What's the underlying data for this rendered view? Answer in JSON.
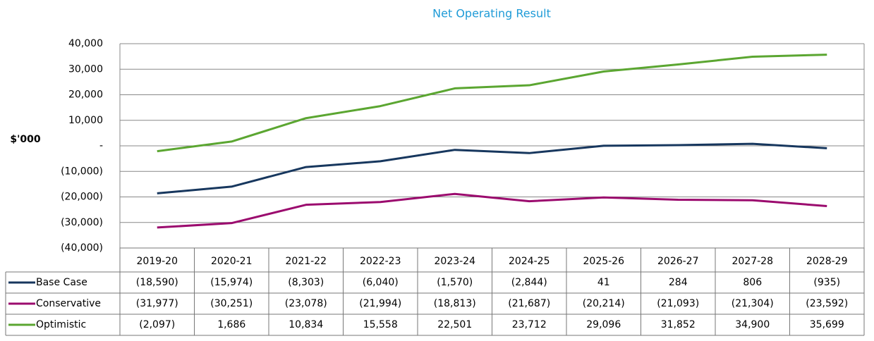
{
  "chart_data": {
    "type": "line",
    "title": "Net Operating Result",
    "y_label": "$'000",
    "categories": [
      "2019-20",
      "2020-21",
      "2021-22",
      "2022-23",
      "2023-24",
      "2024-25",
      "2025-26",
      "2026-27",
      "2027-28",
      "2028-29"
    ],
    "series": [
      {
        "name": "Base Case",
        "color": "#17375e",
        "values": [
          -18590,
          -15974,
          -8303,
          -6040,
          -1570,
          -2844,
          41,
          284,
          806,
          -935
        ],
        "value_labels": [
          "(18,590)",
          "(15,974)",
          "(8,303)",
          "(6,040)",
          "(1,570)",
          "(2,844)",
          "41",
          "284",
          "806",
          "(935)"
        ]
      },
      {
        "name": "Conservative",
        "color": "#9b0b6e",
        "values": [
          -31977,
          -30251,
          -23078,
          -21994,
          -18813,
          -21687,
          -20214,
          -21093,
          -21304,
          -23592
        ],
        "value_labels": [
          "(31,977)",
          "(30,251)",
          "(23,078)",
          "(21,994)",
          "(18,813)",
          "(21,687)",
          "(20,214)",
          "(21,093)",
          "(21,304)",
          "(23,592)"
        ]
      },
      {
        "name": "Optimistic",
        "color": "#5ba631",
        "values": [
          -2097,
          1686,
          10834,
          15558,
          22501,
          23712,
          29096,
          31852,
          34900,
          35699
        ],
        "value_labels": [
          "(2,097)",
          "1,686",
          "10,834",
          "15,558",
          "22,501",
          "23,712",
          "29,096",
          "31,852",
          "34,900",
          "35,699"
        ]
      }
    ],
    "ylim": [
      -40000,
      40000
    ],
    "yticks": [
      {
        "value": -40000,
        "label": "(40,000)"
      },
      {
        "value": -30000,
        "label": "(30,000)"
      },
      {
        "value": -20000,
        "label": "(20,000)"
      },
      {
        "value": -10000,
        "label": "(10,000)"
      },
      {
        "value": 0,
        "label": "-"
      },
      {
        "value": 10000,
        "label": "10,000"
      },
      {
        "value": 20000,
        "label": "20,000"
      },
      {
        "value": 30000,
        "label": "30,000"
      },
      {
        "value": 40000,
        "label": "40,000"
      }
    ],
    "grid": true
  }
}
